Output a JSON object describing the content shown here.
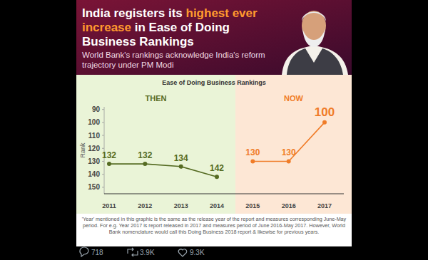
{
  "chart_data": {
    "type": "line",
    "title": [
      "India registers its ",
      "highest ever increase",
      " in Ease of Doing Business Rankings"
    ],
    "subtitle": "World Bank's rankings acknowledge India's reform trajectory under PM Modi",
    "chart_title": "Ease of Doing Business Rankings",
    "annotations": [
      "THEN",
      "NOW"
    ],
    "ylabel": "Rank",
    "categories": [
      "2011",
      "2012",
      "2013",
      "2014",
      "2015",
      "2016",
      "2017"
    ],
    "series": [
      {
        "color": "#556b22",
        "marker": "circle",
        "values": [
          132,
          132,
          134,
          142,
          null,
          null,
          null
        ]
      },
      {
        "color": "#f07c28",
        "marker": "circle",
        "values": [
          null,
          null,
          null,
          null,
          130,
          130,
          100
        ]
      }
    ],
    "ylim": [
      155,
      88
    ],
    "yticks": [
      90,
      100,
      110,
      120,
      130,
      140,
      150
    ],
    "grid": false,
    "data_labels": true,
    "footnote": "'Year' mentioned in this graphic is the same as the release year of the report and measures corresponding June-May period. For e.g. Year 2017 is report released in 2017 and measures period of June 2016-May 2017. However, World Bank nomenclature would call this Doing Business 2018 report & likewise for previous years."
  },
  "tweet": {
    "stats": [
      "718",
      "3.9K",
      "9.3K"
    ]
  }
}
